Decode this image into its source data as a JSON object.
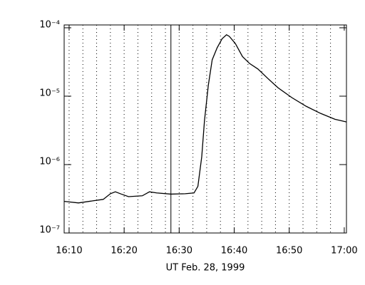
{
  "chart_data": {
    "type": "line",
    "xlabel": "UT Feb. 28, 1999",
    "x": [
      969.1,
      971.7,
      974.3,
      976.2,
      977.5,
      978.4,
      979.5,
      980.8,
      983.3,
      984.6,
      985.9,
      988.5,
      991.1,
      992.7,
      993.4,
      994.1,
      994.6,
      995.3,
      996.0,
      996.9,
      997.8,
      998.6,
      999.1,
      1000.2,
      1001.5,
      1002.8,
      1004.3,
      1006.0,
      1008.0,
      1010.5,
      1013.1,
      1015.7,
      1018.3,
      1020.4
    ],
    "series": [
      {
        "color": "#000000",
        "values": [
          2.9e-07,
          2.75e-07,
          2.95e-07,
          3.1e-07,
          3.75e-07,
          4e-07,
          3.7e-07,
          3.4e-07,
          3.5e-07,
          4e-07,
          3.85e-07,
          3.7e-07,
          3.75e-07,
          3.85e-07,
          4.8e-07,
          1.3e-06,
          4.4e-06,
          1.45e-05,
          3.4e-05,
          5.1e-05,
          6.9e-05,
          7.9e-05,
          7.5e-05,
          5.9e-05,
          3.8e-05,
          3e-05,
          2.5e-05,
          1.85e-05,
          1.32e-05,
          9.5e-06,
          7.1e-06,
          5.6e-06,
          4.6e-06,
          4.2e-06
        ]
      }
    ],
    "xlim": [
      969.1,
      1020.4
    ],
    "xticks": [
      {
        "value": 970,
        "label": "16:10"
      },
      {
        "value": 980,
        "label": "16:20"
      },
      {
        "value": 990,
        "label": "16:30"
      },
      {
        "value": 1000,
        "label": "16:40"
      },
      {
        "value": 1010,
        "label": "16:50"
      },
      {
        "value": 1020,
        "label": "17:00"
      }
    ],
    "xgrid": [
      970,
      972.5,
      975,
      977.5,
      980,
      982.5,
      985,
      987.5,
      990,
      992.5,
      995,
      997.5,
      1000,
      1002.5,
      1005,
      1007.5,
      1010,
      1012.5,
      1015,
      1017.5
    ],
    "marker_x": 988.5,
    "ylim": [
      1e-07,
      0.00011
    ],
    "ylog": true,
    "yticks": [
      {
        "value": 1e-07,
        "label": "10⁻⁷"
      },
      {
        "value": 1e-06,
        "label": "10⁻⁶"
      },
      {
        "value": 1e-05,
        "label": "10⁻⁵"
      },
      {
        "value": 0.0001,
        "label": "10⁻⁴"
      }
    ]
  }
}
